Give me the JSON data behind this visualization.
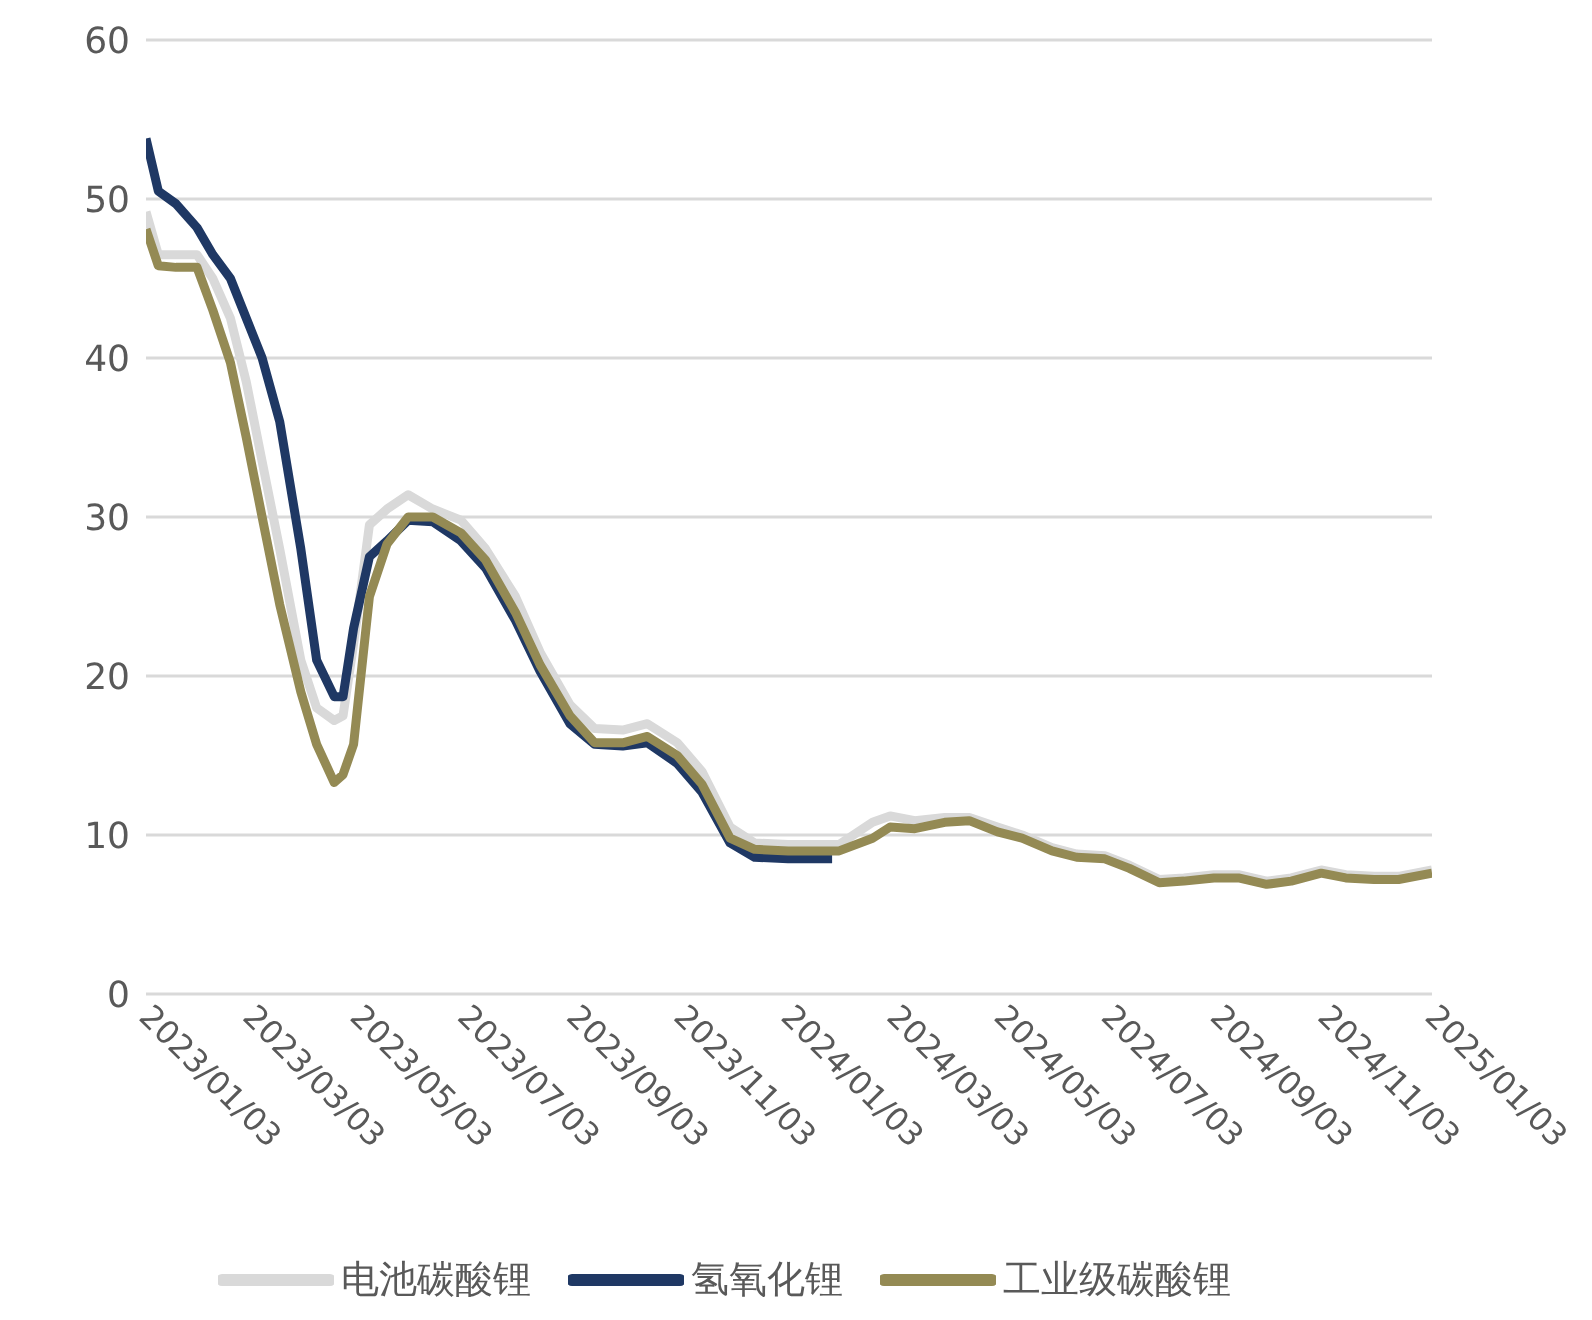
{
  "chart_data": {
    "type": "line",
    "x": [
      "2023-01-03",
      "2023-01-10",
      "2023-01-20",
      "2023-02-01",
      "2023-02-10",
      "2023-02-20",
      "2023-03-01",
      "2023-03-10",
      "2023-03-20",
      "2023-04-01",
      "2023-04-10",
      "2023-04-20",
      "2023-04-25",
      "2023-05-01",
      "2023-05-10",
      "2023-05-20",
      "2023-06-01",
      "2023-06-15",
      "2023-07-01",
      "2023-07-15",
      "2023-08-01",
      "2023-08-15",
      "2023-09-01",
      "2023-09-15",
      "2023-10-01",
      "2023-10-15",
      "2023-11-01",
      "2023-11-15",
      "2023-12-01",
      "2023-12-15",
      "2024-01-03",
      "2024-02-01",
      "2024-02-20",
      "2024-03-01",
      "2024-03-15",
      "2024-04-01",
      "2024-04-15",
      "2024-05-01",
      "2024-05-15",
      "2024-06-01",
      "2024-06-15",
      "2024-07-01",
      "2024-07-15",
      "2024-08-01",
      "2024-08-15",
      "2024-09-01",
      "2024-09-15",
      "2024-10-01",
      "2024-10-15",
      "2024-11-01",
      "2024-11-15",
      "2024-12-01",
      "2024-12-15",
      "2025-01-03"
    ],
    "series": [
      {
        "name": "电池碳酸锂",
        "color": "#d9d9d9",
        "values": [
          49.2,
          46.5,
          46.5,
          46.5,
          45,
          42.5,
          38.5,
          33.5,
          28,
          21,
          18,
          17.2,
          17.5,
          22,
          29.5,
          30.5,
          31.4,
          30.5,
          29.8,
          28,
          25,
          21.5,
          18.2,
          16.7,
          16.6,
          17,
          15.8,
          14,
          10.5,
          9.5,
          9.4,
          9.4,
          10.8,
          11.2,
          10.9,
          11.1,
          11.1,
          10.5,
          10,
          9.2,
          8.8,
          8.7,
          8.1,
          7.2,
          7.3,
          7.5,
          7.5,
          7.1,
          7.3,
          7.8,
          7.5,
          7.4,
          7.4,
          7.8
        ]
      },
      {
        "name": "氢氧化锂",
        "color": "#1f3864",
        "x": [
          "2023-01-03",
          "2023-01-10",
          "2023-01-20",
          "2023-02-01",
          "2023-02-10",
          "2023-02-20",
          "2023-03-01",
          "2023-03-10",
          "2023-03-20",
          "2023-04-01",
          "2023-04-10",
          "2023-04-20",
          "2023-04-25",
          "2023-05-01",
          "2023-05-10",
          "2023-05-20",
          "2023-06-01",
          "2023-06-15",
          "2023-07-01",
          "2023-07-15",
          "2023-08-01",
          "2023-08-15",
          "2023-09-01",
          "2023-09-15",
          "2023-10-01",
          "2023-10-15",
          "2023-11-01",
          "2023-11-15",
          "2023-12-01",
          "2023-12-15",
          "2024-01-03",
          "2024-01-28"
        ],
        "values": [
          53.8,
          50.5,
          49.7,
          48.2,
          46.5,
          45,
          42.5,
          40,
          36,
          28,
          21,
          18.7,
          18.7,
          23,
          27.5,
          28.5,
          29.8,
          29.7,
          28.5,
          26.8,
          23.5,
          20.3,
          17,
          15.7,
          15.6,
          15.8,
          14.5,
          12.7,
          9.5,
          8.6,
          8.5,
          8.5
        ]
      },
      {
        "name": "工业级碳酸锂",
        "color": "#948a54",
        "values": [
          48.1,
          45.8,
          45.7,
          45.7,
          43,
          39.7,
          35,
          30,
          24.5,
          19,
          15.7,
          13.3,
          13.8,
          15.7,
          25,
          28.3,
          30,
          30,
          29,
          27.3,
          24,
          20.7,
          17.5,
          15.8,
          15.8,
          16.2,
          15,
          13.2,
          9.8,
          9.1,
          9,
          9,
          9.8,
          10.5,
          10.4,
          10.8,
          10.9,
          10.2,
          9.8,
          9,
          8.6,
          8.5,
          7.9,
          7,
          7.1,
          7.3,
          7.3,
          6.9,
          7.1,
          7.6,
          7.3,
          7.2,
          7.2,
          7.6
        ]
      }
    ],
    "xlim": [
      "2023-01-03",
      "2025-01-03"
    ],
    "xticks": [
      {
        "value": "2023-01-03",
        "label": "2023/01/03"
      },
      {
        "value": "2023-03-03",
        "label": "2023/03/03"
      },
      {
        "value": "2023-05-03",
        "label": "2023/05/03"
      },
      {
        "value": "2023-07-03",
        "label": "2023/07/03"
      },
      {
        "value": "2023-09-03",
        "label": "2023/09/03"
      },
      {
        "value": "2023-11-03",
        "label": "2023/11/03"
      },
      {
        "value": "2024-01-03",
        "label": "2024/01/03"
      },
      {
        "value": "2024-03-03",
        "label": "2024/03/03"
      },
      {
        "value": "2024-05-03",
        "label": "2024/05/03"
      },
      {
        "value": "2024-07-03",
        "label": "2024/07/03"
      },
      {
        "value": "2024-09-03",
        "label": "2024/09/03"
      },
      {
        "value": "2024-11-03",
        "label": "2024/11/03"
      },
      {
        "value": "2025-01-03",
        "label": "2025/01/03"
      }
    ],
    "ylim": [
      0,
      60
    ],
    "yticks": [
      0,
      10,
      20,
      30,
      40,
      50,
      60
    ],
    "grid": "y",
    "legend": "bottom",
    "marker": "none",
    "line_style": "solid"
  }
}
